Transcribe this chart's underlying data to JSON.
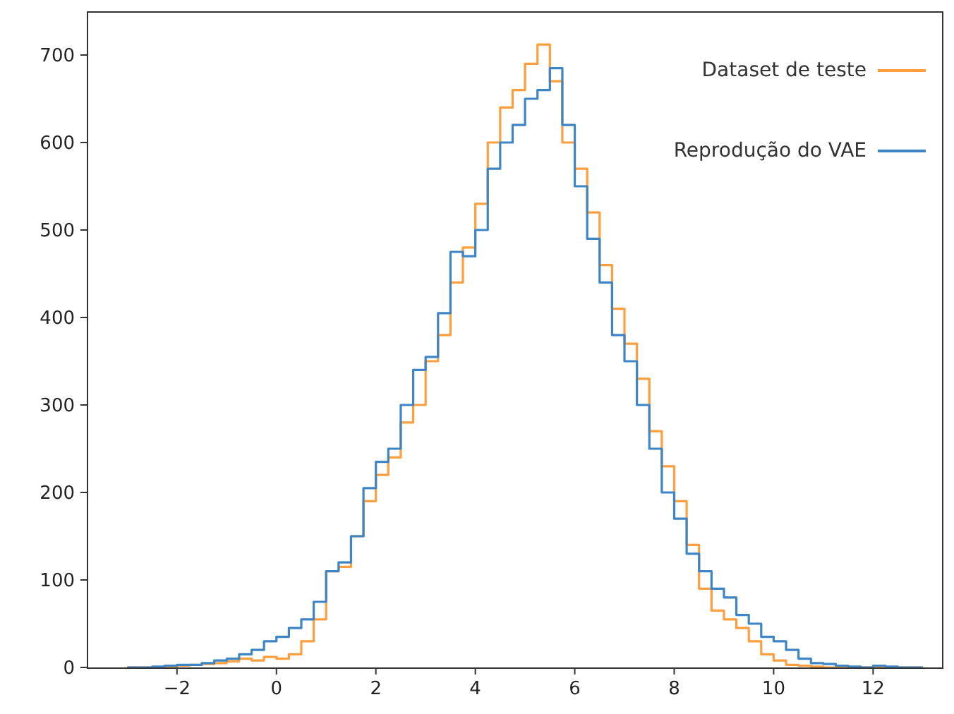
{
  "chart_data": {
    "type": "histogram",
    "xlim": [
      -3.8,
      13.4
    ],
    "ylim": [
      0,
      750
    ],
    "xticks": [
      -2,
      0,
      2,
      4,
      6,
      8,
      10,
      12
    ],
    "yticks": [
      0,
      100,
      200,
      300,
      400,
      500,
      600,
      700
    ],
    "grid": false,
    "legend": "top right",
    "bins": [
      -3,
      -2.75,
      -2.5,
      -2.25,
      -2,
      -1.75,
      -1.5,
      -1.25,
      -1,
      -0.75,
      -0.5,
      -0.25,
      0,
      0.25,
      0.5,
      0.75,
      1,
      1.25,
      1.5,
      1.75,
      2,
      2.25,
      2.5,
      2.75,
      3,
      3.25,
      3.5,
      3.75,
      4,
      4.25,
      4.5,
      4.75,
      5,
      5.25,
      5.5,
      5.75,
      6,
      6.25,
      6.5,
      6.75,
      7,
      7.25,
      7.5,
      7.75,
      8,
      8.25,
      8.5,
      8.75,
      9,
      9.25,
      9.5,
      9.75,
      10,
      10.25,
      10.5,
      10.75,
      11,
      11.25,
      11.5,
      11.75,
      12,
      12.25,
      12.5,
      12.75,
      13
    ],
    "series": [
      {
        "name": "Dataset de teste",
        "color": "#ff9e3d",
        "values": [
          0,
          0,
          0,
          1,
          2,
          3,
          4,
          5,
          7,
          10,
          8,
          12,
          10,
          15,
          30,
          55,
          110,
          115,
          150,
          190,
          220,
          240,
          280,
          300,
          350,
          380,
          440,
          480,
          530,
          600,
          640,
          660,
          690,
          712,
          670,
          600,
          570,
          520,
          460,
          410,
          370,
          330,
          270,
          230,
          190,
          140,
          90,
          65,
          55,
          45,
          30,
          15,
          8,
          3,
          2,
          1,
          0,
          0,
          0,
          0,
          0,
          0,
          0,
          0
        ]
      },
      {
        "name": "Reprodução do VAE",
        "color": "#3d85c6",
        "values": [
          0,
          0,
          1,
          2,
          3,
          3,
          5,
          8,
          10,
          15,
          20,
          30,
          35,
          45,
          55,
          75,
          110,
          120,
          150,
          205,
          235,
          250,
          300,
          340,
          355,
          405,
          475,
          470,
          500,
          570,
          600,
          620,
          650,
          660,
          685,
          620,
          550,
          490,
          440,
          380,
          350,
          300,
          250,
          200,
          170,
          130,
          110,
          90,
          80,
          60,
          50,
          35,
          30,
          20,
          10,
          5,
          4,
          2,
          1,
          0,
          2,
          1,
          0,
          0
        ]
      }
    ]
  }
}
